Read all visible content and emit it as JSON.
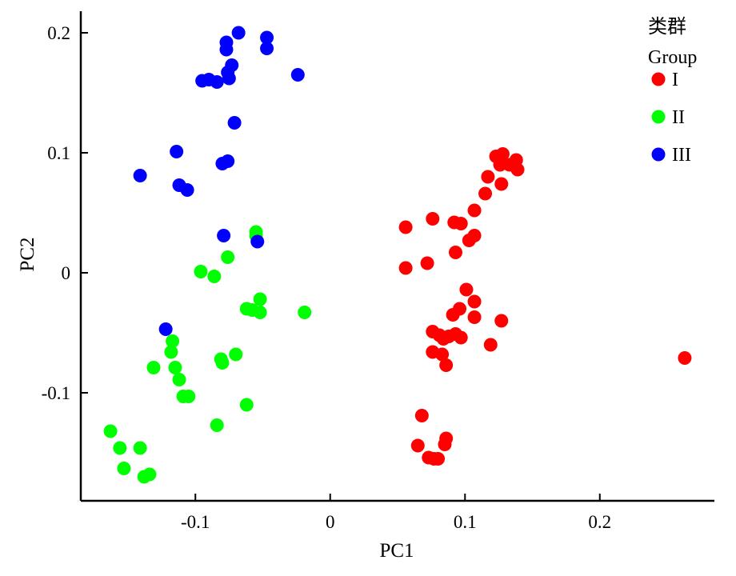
{
  "chart_data": {
    "type": "scatter",
    "title": "",
    "xlabel": "PC1",
    "ylabel": "PC2",
    "xlim": [
      -0.185,
      0.285
    ],
    "ylim": [
      -0.19,
      0.218
    ],
    "x_ticks": [
      {
        "value": -0.1,
        "label": "-0.1"
      },
      {
        "value": 0,
        "label": "0"
      },
      {
        "value": 0.1,
        "label": "0.1"
      },
      {
        "value": 0.2,
        "label": "0.2"
      }
    ],
    "y_ticks": [
      {
        "value": -0.1,
        "label": "-0.1"
      },
      {
        "value": 0,
        "label": "0"
      },
      {
        "value": 0.1,
        "label": "0.1"
      },
      {
        "value": 0.2,
        "label": "0.2"
      }
    ],
    "grid": false,
    "legend": {
      "title_zh": "类群",
      "title_en": "Group",
      "placement": "top-right"
    },
    "series": [
      {
        "name": "I",
        "color": "#ff0000",
        "points": [
          [
            0.123,
            0.097
          ],
          [
            0.128,
            0.099
          ],
          [
            0.138,
            0.094
          ],
          [
            0.126,
            0.09
          ],
          [
            0.133,
            0.09
          ],
          [
            0.139,
            0.086
          ],
          [
            0.117,
            0.08
          ],
          [
            0.127,
            0.074
          ],
          [
            0.115,
            0.066
          ],
          [
            0.107,
            0.052
          ],
          [
            0.076,
            0.045
          ],
          [
            0.092,
            0.042
          ],
          [
            0.097,
            0.041
          ],
          [
            0.056,
            0.038
          ],
          [
            0.107,
            0.031
          ],
          [
            0.103,
            0.027
          ],
          [
            0.093,
            0.017
          ],
          [
            0.072,
            0.008
          ],
          [
            0.056,
            0.004
          ],
          [
            0.101,
            -0.014
          ],
          [
            0.107,
            -0.024
          ],
          [
            0.096,
            -0.03
          ],
          [
            0.091,
            -0.035
          ],
          [
            0.107,
            -0.037
          ],
          [
            0.127,
            -0.04
          ],
          [
            0.076,
            -0.049
          ],
          [
            0.081,
            -0.052
          ],
          [
            0.093,
            -0.051
          ],
          [
            0.088,
            -0.053
          ],
          [
            0.084,
            -0.055
          ],
          [
            0.097,
            -0.054
          ],
          [
            0.119,
            -0.06
          ],
          [
            0.076,
            -0.066
          ],
          [
            0.083,
            -0.068
          ],
          [
            0.086,
            -0.077
          ],
          [
            0.263,
            -0.071
          ],
          [
            0.068,
            -0.119
          ],
          [
            0.086,
            -0.138
          ],
          [
            0.085,
            -0.143
          ],
          [
            0.065,
            -0.144
          ],
          [
            0.073,
            -0.154
          ],
          [
            0.077,
            -0.155
          ],
          [
            0.08,
            -0.155
          ]
        ]
      },
      {
        "name": "II",
        "color": "#00ff00",
        "points": [
          [
            -0.055,
            0.034
          ],
          [
            -0.055,
            0.031
          ],
          [
            -0.076,
            0.013
          ],
          [
            -0.096,
            0.001
          ],
          [
            -0.086,
            -0.003
          ],
          [
            -0.052,
            -0.022
          ],
          [
            -0.062,
            -0.03
          ],
          [
            -0.058,
            -0.031
          ],
          [
            -0.052,
            -0.033
          ],
          [
            -0.019,
            -0.033
          ],
          [
            -0.117,
            -0.057
          ],
          [
            -0.118,
            -0.066
          ],
          [
            -0.07,
            -0.068
          ],
          [
            -0.081,
            -0.072
          ],
          [
            -0.08,
            -0.075
          ],
          [
            -0.131,
            -0.079
          ],
          [
            -0.115,
            -0.079
          ],
          [
            -0.112,
            -0.089
          ],
          [
            -0.109,
            -0.103
          ],
          [
            -0.105,
            -0.103
          ],
          [
            -0.062,
            -0.11
          ],
          [
            -0.084,
            -0.127
          ],
          [
            -0.163,
            -0.132
          ],
          [
            -0.156,
            -0.146
          ],
          [
            -0.141,
            -0.146
          ],
          [
            -0.153,
            -0.163
          ],
          [
            -0.138,
            -0.17
          ],
          [
            -0.134,
            -0.168
          ]
        ]
      },
      {
        "name": "III",
        "color": "#0000ff",
        "points": [
          [
            -0.068,
            0.2
          ],
          [
            -0.047,
            0.196
          ],
          [
            -0.077,
            0.192
          ],
          [
            -0.047,
            0.187
          ],
          [
            -0.077,
            0.186
          ],
          [
            -0.073,
            0.173
          ],
          [
            -0.076,
            0.167
          ],
          [
            -0.075,
            0.162
          ],
          [
            -0.024,
            0.165
          ],
          [
            -0.095,
            0.16
          ],
          [
            -0.09,
            0.161
          ],
          [
            -0.084,
            0.159
          ],
          [
            -0.071,
            0.125
          ],
          [
            -0.114,
            0.101
          ],
          [
            -0.076,
            0.093
          ],
          [
            -0.08,
            0.091
          ],
          [
            -0.141,
            0.081
          ],
          [
            -0.112,
            0.073
          ],
          [
            -0.106,
            0.069
          ],
          [
            -0.079,
            0.031
          ],
          [
            -0.054,
            0.026
          ],
          [
            -0.122,
            -0.047
          ]
        ]
      }
    ]
  }
}
